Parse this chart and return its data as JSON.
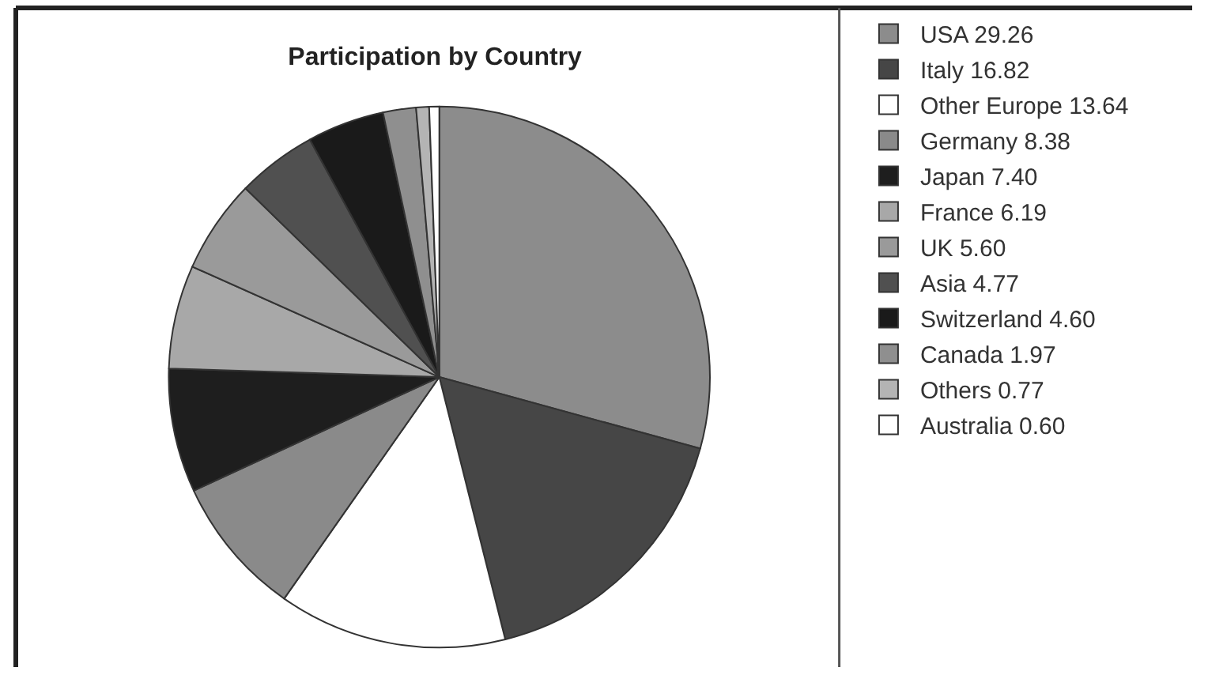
{
  "chart_data": {
    "type": "pie",
    "title": "Participation by Country",
    "categories": [
      "USA",
      "Italy",
      "Other Europe",
      "Germany",
      "Japan",
      "France",
      "UK",
      "Asia",
      "Switzerland",
      "Canada",
      "Others",
      "Australia"
    ],
    "values": [
      29.26,
      16.82,
      13.64,
      8.38,
      7.4,
      6.19,
      5.6,
      4.77,
      4.6,
      1.97,
      0.77,
      0.6
    ],
    "value_labels": [
      "29.26",
      "16.82",
      "13.64",
      "8.38",
      "7.40",
      "6.19",
      "5.60",
      "4.77",
      "4.60",
      "1.97",
      "0.77",
      "0.60"
    ],
    "colors": [
      "#8c8c8c",
      "#464646",
      "#ffffff",
      "#8a8a8a",
      "#1e1e1e",
      "#a8a8a8",
      "#9a9a9a",
      "#505050",
      "#1a1a1a",
      "#8f8f8f",
      "#b4b4b4",
      "#ffffff"
    ],
    "legend": "right"
  }
}
